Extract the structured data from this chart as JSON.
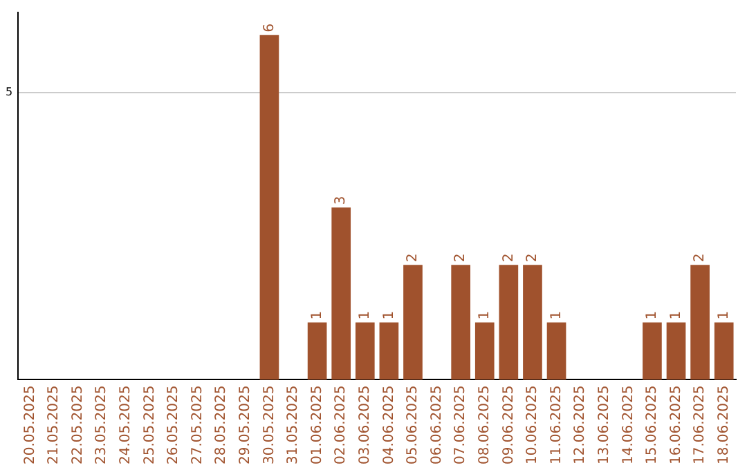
{
  "chart_data": {
    "type": "bar",
    "categories": [
      "20.05.2025",
      "21.05.2025",
      "22.05.2025",
      "23.05.2025",
      "24.05.2025",
      "25.05.2025",
      "26.05.2025",
      "27.05.2025",
      "28.05.2025",
      "29.05.2025",
      "30.05.2025",
      "31.05.2025",
      "01.06.2025",
      "02.06.2025",
      "03.06.2025",
      "04.06.2025",
      "05.06.2025",
      "06.06.2025",
      "07.06.2025",
      "08.06.2025",
      "09.06.2025",
      "10.06.2025",
      "11.06.2025",
      "12.06.2025",
      "13.06.2025",
      "14.06.2025",
      "15.06.2025",
      "16.06.2025",
      "17.06.2025",
      "18.06.2025"
    ],
    "values": [
      0,
      0,
      0,
      0,
      0,
      0,
      0,
      0,
      0,
      0,
      6,
      0,
      1,
      3,
      1,
      1,
      2,
      0,
      2,
      1,
      2,
      2,
      1,
      0,
      0,
      0,
      1,
      1,
      2,
      1
    ],
    "value_labels": [
      null,
      null,
      null,
      null,
      null,
      null,
      null,
      null,
      null,
      null,
      "6",
      null,
      "1",
      "3",
      "1",
      "1",
      "2",
      null,
      "2",
      "1",
      "2",
      "2",
      "1",
      null,
      null,
      null,
      "1",
      "1",
      "2",
      "1"
    ],
    "color": "#a0522d",
    "ylim": [
      0,
      6.4
    ],
    "yticks": [
      5
    ],
    "grid": "y",
    "legend": false
  }
}
